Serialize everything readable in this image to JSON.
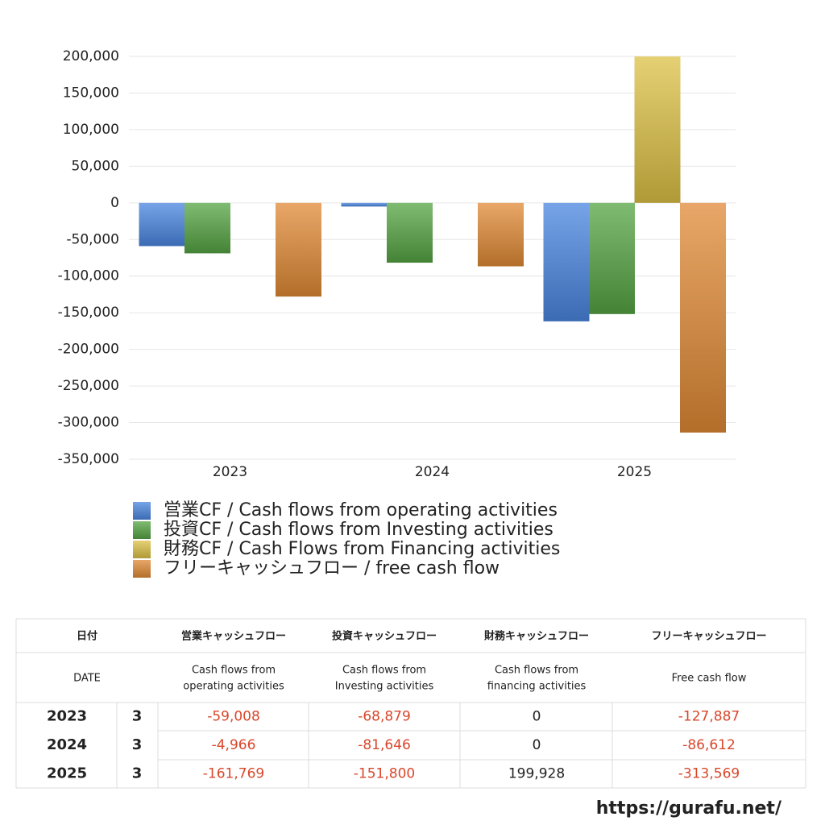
{
  "chart_data": {
    "type": "bar",
    "categories": [
      "2023",
      "2024",
      "2025"
    ],
    "series": [
      {
        "name": "営業CF / Cash flows from operating activities",
        "color": "#4a86e0",
        "values": [
          -59008,
          -4966,
          -161769
        ]
      },
      {
        "name": "投資CF / Cash flows from Investing activities",
        "color": "#55a443",
        "values": [
          -68879,
          -81646,
          -151800
        ]
      },
      {
        "name": "財務CF / Cash Flows from Financing activities",
        "color": "#dcc045",
        "values": [
          0,
          0,
          199928
        ]
      },
      {
        "name": "フリーキャッシュフロー / free cash flow",
        "color": "#e08a35",
        "values": [
          -127887,
          -86612,
          -313569
        ]
      }
    ],
    "ylim": [
      -350000,
      200000
    ],
    "yticks": [
      {
        "value": -350000,
        "label": "-350,000"
      },
      {
        "value": -300000,
        "label": "-300,000"
      },
      {
        "value": -250000,
        "label": "-250,000"
      },
      {
        "value": -200000,
        "label": "-200,000"
      },
      {
        "value": -150000,
        "label": "-150,000"
      },
      {
        "value": -100000,
        "label": "-100,000"
      },
      {
        "value": -50000,
        "label": "-50,000"
      },
      0,
      {
        "value": 50000,
        "label": "50,000"
      },
      {
        "value": 100000,
        "label": "100,000"
      },
      {
        "value": 150000,
        "label": "150,000"
      },
      {
        "value": 200000,
        "label": "200,000"
      }
    ],
    "grid": true
  },
  "table": {
    "header_ja": [
      "日付",
      "営業キャッシュフロー",
      "投資キャッシュフロー",
      "財務キャッシュフロー",
      "フリーキャッシュフロー"
    ],
    "header_en": [
      "DATE",
      [
        "Cash flows from",
        "operating activities"
      ],
      [
        "Cash flows from",
        "Investing activities"
      ],
      [
        "Cash flows from",
        "financing activities"
      ],
      "Free cash flow"
    ],
    "rows": [
      [
        "2023",
        "3",
        "-59,008",
        "-68,879",
        "0",
        "-127,887"
      ],
      [
        "2024",
        "3",
        "-4,966",
        "-81,646",
        "0",
        "-86,612"
      ],
      [
        "2025",
        "3",
        "-161,769",
        "-151,800",
        "199,928",
        "-313,569"
      ]
    ]
  },
  "footer": "https://gurafu.net/"
}
